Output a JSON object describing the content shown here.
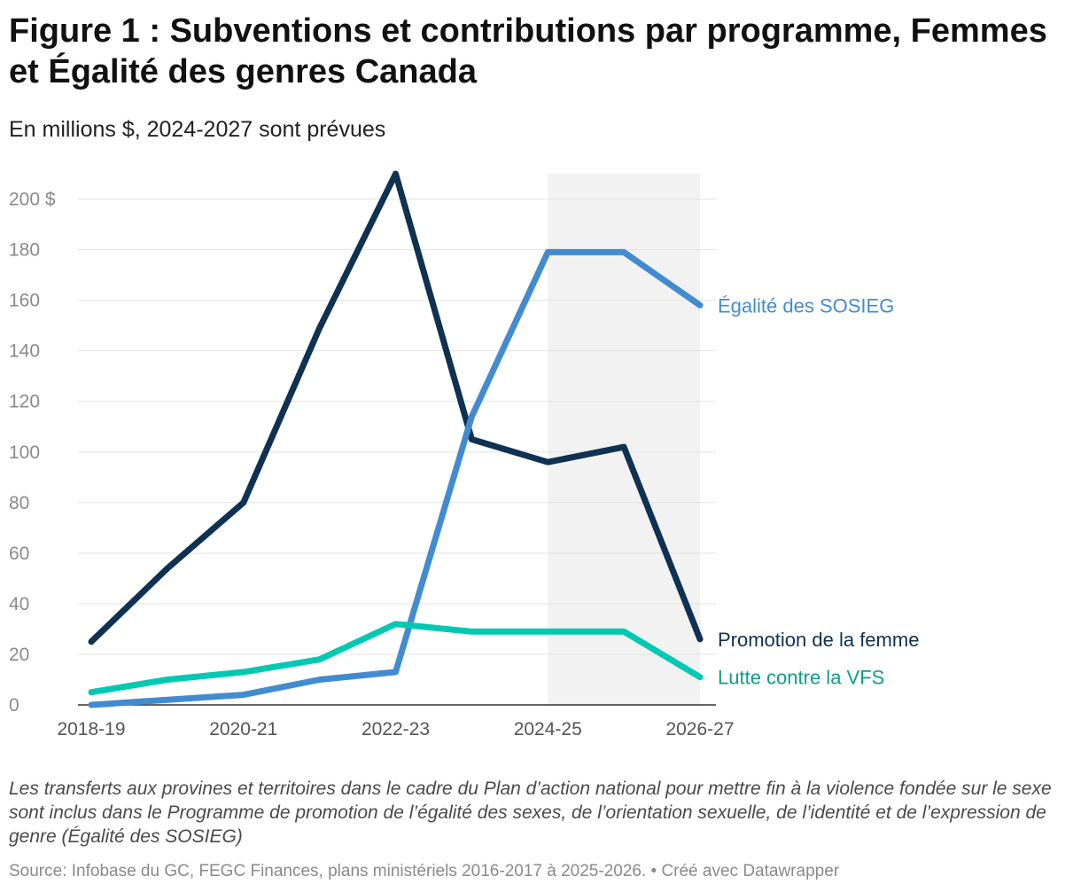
{
  "title": "Figure 1 : Subventions et contributions par programme, Femmes et Égalité des genres Canada",
  "subtitle": "En millions $, 2024-2027 sont prévues",
  "note": "Les transferts aux provines et territoires dans le cadre du Plan d’action national pour mettre fin à la violence fondée sur le sexe sont inclus dans le Programme de promotion de l’égalité des sexes, de l’orientation sexuelle, de l’identité et de l’expression de genre (Égalité des SOSIEG)",
  "source": "Source: Infobase du GC, FEGC Finances, plans ministériels 2016-2017 à 2025-2026. • Créé avec Datawrapper",
  "chart_data": {
    "type": "line",
    "x": [
      "2018-19",
      "2019-20",
      "2020-21",
      "2021-22",
      "2022-23",
      "2023-24",
      "2024-25",
      "2025-26",
      "2026-27"
    ],
    "x_tick_labels": [
      "2018-19",
      "2020-21",
      "2022-23",
      "2024-25",
      "2026-27"
    ],
    "ylim": [
      0,
      210
    ],
    "y_ticks": [
      0,
      20,
      40,
      60,
      80,
      100,
      120,
      140,
      160,
      180,
      200
    ],
    "y_tick_labels": [
      "0",
      "20",
      "40",
      "60",
      "80",
      "100",
      "120",
      "140",
      "160",
      "180",
      "200 $"
    ],
    "grid": true,
    "forecast_band": {
      "from": "2024-25",
      "to": "2026-27",
      "color": "#f2f2f2"
    },
    "series": [
      {
        "name": "Promotion de la femme",
        "color": "#0f3152",
        "values": [
          25,
          54,
          80,
          149,
          210,
          105,
          96,
          102,
          26
        ]
      },
      {
        "name": "Égalité des SOSIEG",
        "color": "#428bd0",
        "values": [
          0,
          2,
          4,
          10,
          13,
          114,
          179,
          179,
          158
        ]
      },
      {
        "name": "Lutte contre la VFS",
        "color": "#00c9b3",
        "label_color": "#0a9e8b",
        "values": [
          5,
          10,
          13,
          18,
          32,
          29,
          29,
          29,
          11
        ]
      }
    ]
  }
}
